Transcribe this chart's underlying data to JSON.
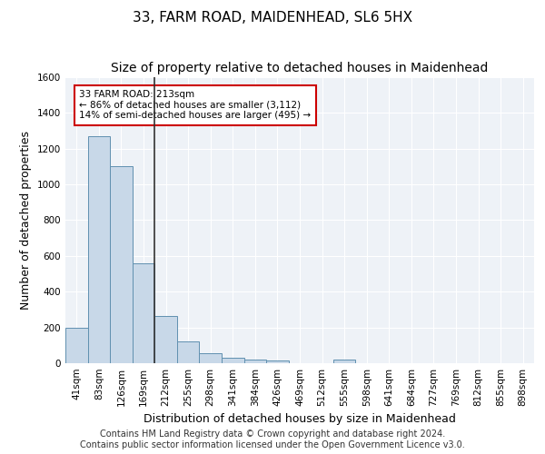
{
  "title1": "33, FARM ROAD, MAIDENHEAD, SL6 5HX",
  "title2": "Size of property relative to detached houses in Maidenhead",
  "xlabel": "Distribution of detached houses by size in Maidenhead",
  "ylabel": "Number of detached properties",
  "bins": [
    "41sqm",
    "83sqm",
    "126sqm",
    "169sqm",
    "212sqm",
    "255sqm",
    "298sqm",
    "341sqm",
    "384sqm",
    "426sqm",
    "469sqm",
    "512sqm",
    "555sqm",
    "598sqm",
    "641sqm",
    "684sqm",
    "727sqm",
    "769sqm",
    "812sqm",
    "855sqm",
    "898sqm"
  ],
  "values": [
    200,
    1270,
    1100,
    560,
    265,
    120,
    55,
    30,
    20,
    15,
    0,
    0,
    20,
    0,
    0,
    0,
    0,
    0,
    0,
    0,
    0
  ],
  "bar_color": "#c8d8e8",
  "bar_edge_color": "#6090b0",
  "vline_x_idx": 4,
  "vline_color": "#333333",
  "annotation_text": "33 FARM ROAD: 213sqm\n← 86% of detached houses are smaller (3,112)\n14% of semi-detached houses are larger (495) →",
  "annotation_box_color": "#ffffff",
  "annotation_box_edge": "#cc0000",
  "footer1": "Contains HM Land Registry data © Crown copyright and database right 2024.",
  "footer2": "Contains public sector information licensed under the Open Government Licence v3.0.",
  "ylim": [
    0,
    1600
  ],
  "yticks": [
    0,
    200,
    400,
    600,
    800,
    1000,
    1200,
    1400,
    1600
  ],
  "bg_color": "#eef2f7",
  "title1_fontsize": 11,
  "title2_fontsize": 10,
  "xlabel_fontsize": 9,
  "ylabel_fontsize": 9,
  "tick_fontsize": 7.5,
  "footer_fontsize": 7
}
